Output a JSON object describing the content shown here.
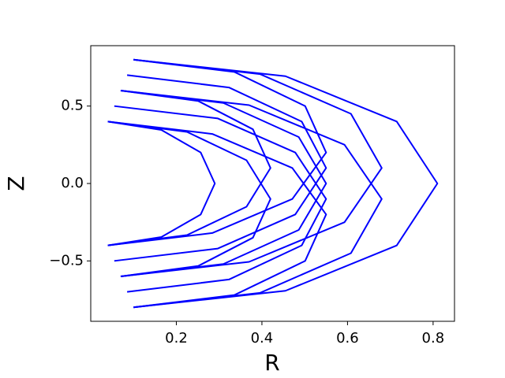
{
  "chart_data": {
    "type": "line",
    "x_label": "R",
    "y_label": "Z",
    "color": "#0000ff",
    "xlim": [
      0.0,
      0.85
    ],
    "ylim": [
      -0.89,
      0.89
    ],
    "xticks": [
      0.2,
      0.4,
      0.6,
      0.8
    ],
    "yticks": [
      {
        "value": -0.5,
        "label": "−0.5"
      },
      {
        "value": 0.0,
        "label": "0.0"
      },
      {
        "value": 0.5,
        "label": "0.5"
      }
    ],
    "lines": [
      {
        "x": [
          0.04,
          0.165,
          0.257,
          0.29,
          0.257,
          0.165,
          0.04
        ],
        "y": [
          0.4,
          0.346,
          0.2,
          0,
          -0.2,
          -0.346,
          -0.4
        ]
      },
      {
        "x": [
          0.1,
          0.455,
          0.715,
          0.81,
          0.715,
          0.455,
          0.1
        ],
        "y": [
          0.8,
          0.693,
          0.4,
          0,
          -0.4,
          -0.693,
          -0.8
        ]
      },
      {
        "x": [
          0.04,
          0.284,
          0.471,
          0.55,
          0.501,
          0.336,
          0.1
        ],
        "y": [
          0.4,
          0.32,
          0.1,
          -0.2,
          -0.5,
          -0.72,
          -0.8
        ]
      },
      {
        "x": [
          0.1,
          0.336,
          0.501,
          0.55,
          0.471,
          0.284,
          0.04
        ],
        "y": [
          0.8,
          0.72,
          0.5,
          0.2,
          -0.1,
          -0.32,
          -0.4
        ]
      },
      {
        "x": [
          0.07,
          0.31,
          0.486,
          0.55,
          0.486,
          0.31,
          0.07
        ],
        "y": [
          0.6,
          0.52,
          0.3,
          0,
          -0.3,
          -0.52,
          -0.6
        ]
      },
      {
        "x": [
          0.055,
          0.297,
          0.478,
          0.55,
          0.493,
          0.323,
          0.085
        ],
        "y": [
          0.5,
          0.42,
          0.2,
          -0.1,
          -0.4,
          -0.62,
          -0.7
        ]
      },
      {
        "x": [
          0.085,
          0.323,
          0.493,
          0.55,
          0.478,
          0.297,
          0.055
        ],
        "y": [
          0.7,
          0.62,
          0.4,
          0.1,
          -0.2,
          -0.42,
          -0.5
        ]
      },
      {
        "x": [
          0.07,
          0.251,
          0.379,
          0.42,
          0.364,
          0.225,
          0.04
        ],
        "y": [
          0.6,
          0.533,
          0.35,
          0.1,
          -0.15,
          -0.333,
          -0.4
        ]
      },
      {
        "x": [
          0.04,
          0.225,
          0.364,
          0.42,
          0.379,
          0.251,
          0.07
        ],
        "y": [
          0.4,
          0.333,
          0.15,
          -0.1,
          -0.35,
          -0.533,
          -0.6
        ]
      },
      {
        "x": [
          0.1,
          0.396,
          0.608,
          0.68,
          0.593,
          0.37,
          0.07
        ],
        "y": [
          0.8,
          0.706,
          0.45,
          0.1,
          -0.25,
          -0.506,
          -0.6
        ]
      },
      {
        "x": [
          0.07,
          0.37,
          0.593,
          0.68,
          0.608,
          0.396,
          0.1
        ],
        "y": [
          0.6,
          0.506,
          0.25,
          -0.1,
          -0.45,
          -0.706,
          -0.8
        ]
      }
    ]
  }
}
